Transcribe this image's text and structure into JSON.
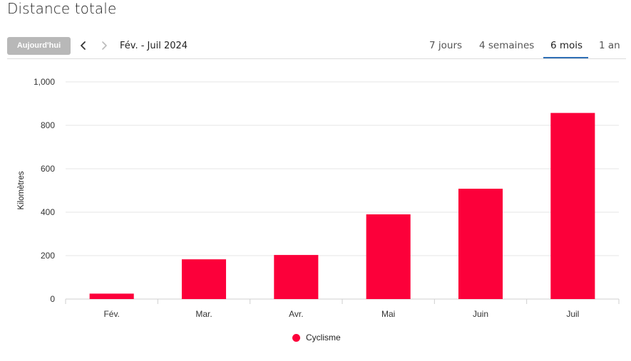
{
  "page": {
    "title": "Distance totale"
  },
  "toolbar": {
    "today_label": "Aujourd'hui",
    "prev_icon": "chevron-left-icon",
    "next_icon": "chevron-right-icon",
    "range_label": "Fév. - Juil 2024",
    "tabs": [
      {
        "label": "7 jours",
        "active": false
      },
      {
        "label": "4 semaines",
        "active": false
      },
      {
        "label": "6 mois",
        "active": true
      },
      {
        "label": "1 an",
        "active": false
      }
    ],
    "accent_color": "#2e6fb5"
  },
  "chart_data": {
    "type": "bar",
    "title": "",
    "xlabel": "",
    "ylabel": "Kilomètres",
    "categories": [
      "Fév.",
      "Mar.",
      "Avr.",
      "Mai",
      "Juin",
      "Juil"
    ],
    "series": [
      {
        "name": "Cyclisme",
        "color": "#fc003a",
        "values": [
          25,
          183,
          203,
          390,
          508,
          857
        ]
      }
    ],
    "ylim": [
      0,
      1000
    ],
    "yticks": [
      0,
      200,
      400,
      600,
      800,
      1000
    ],
    "ytick_labels": [
      "0",
      "200",
      "400",
      "600",
      "800",
      "1,000"
    ],
    "grid": true,
    "legend_position": "bottom"
  }
}
